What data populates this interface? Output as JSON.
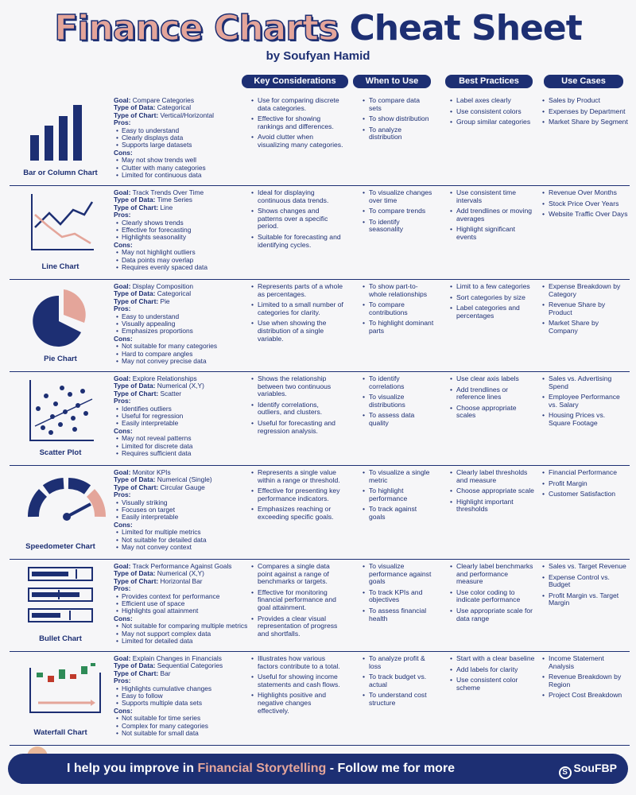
{
  "title": {
    "part1": "Finance Charts",
    "part2": "Cheat Sheet"
  },
  "byline": "by Soufyan Hamid",
  "columns": [
    "Key Considerations",
    "When to Use",
    "Best Practices",
    "Use Cases"
  ],
  "labels": {
    "goal": "Goal:",
    "type_of_data": "Type of Data:",
    "type_of_chart": "Type of Chart:",
    "pros": "Pros:",
    "cons": "Cons:"
  },
  "rows": [
    {
      "name": "Bar or Column Chart",
      "icon": "bar-chart-icon",
      "goal": "Compare Categories",
      "data_type": "Categorical",
      "chart_type": "Vertical/Horizontal",
      "pros": [
        "Easy to understand",
        "Clearly displays data",
        "Supports large datasets"
      ],
      "cons": [
        "May not show trends well",
        "Clutter with many categories",
        "Limited for continuous data"
      ],
      "key": [
        "Use for comparing discrete data categories.",
        "Effective for showing rankings and differences.",
        "Avoid clutter when visualizing many categories."
      ],
      "when": [
        "To compare data sets",
        "To show distribution",
        "To analyze distribution"
      ],
      "best": [
        "Label axes clearly",
        "Use consistent colors",
        "Group similar categories"
      ],
      "uses": [
        "Sales by Product",
        "Expenses by Department",
        "Market Share by Segment"
      ]
    },
    {
      "name": "Line Chart",
      "icon": "line-chart-icon",
      "goal": "Track Trends Over Time",
      "data_type": "Time Series",
      "chart_type": "Line",
      "pros": [
        "Clearly shows trends",
        "Effective for forecasting",
        "Highlights seasonality"
      ],
      "cons": [
        "May not highlight outliers",
        "Data points may overlap",
        "Requires evenly spaced data"
      ],
      "key": [
        "Ideal for displaying continuous data trends.",
        "Shows changes and patterns over a specific period.",
        "Suitable for forecasting and identifying cycles."
      ],
      "when": [
        "To visualize changes over time",
        "To compare trends",
        "To identify seasonality"
      ],
      "best": [
        "Use consistent time intervals",
        "Add trendlines or moving averages",
        "Highlight significant events"
      ],
      "uses": [
        "Revenue Over Months",
        "Stock Price Over Years",
        "Website Traffic Over Days"
      ]
    },
    {
      "name": "Pie Chart",
      "icon": "pie-chart-icon",
      "goal": "Display Composition",
      "data_type": "Categorical",
      "chart_type": "Pie",
      "pros": [
        "Easy to understand",
        "Visually appealing",
        "Emphasizes proportions"
      ],
      "cons": [
        "Not suitable for many categories",
        "Hard to compare angles",
        "May not convey precise data"
      ],
      "key": [
        "Represents parts of a whole as percentages.",
        "Limited to a small number of categories for clarity.",
        "Use when showing the distribution of a single variable."
      ],
      "when": [
        "To show part-to-whole relationships",
        "To compare contributions",
        "To highlight dominant parts"
      ],
      "best": [
        "Limit to a few categories",
        "Sort categories by size",
        "Label categories and percentages"
      ],
      "uses": [
        "Expense Breakdown by Category",
        "Revenue Share by Product",
        "Market Share by Company"
      ]
    },
    {
      "name": "Scatter Plot",
      "icon": "scatter-plot-icon",
      "goal": "Explore Relationships",
      "data_type": "Numerical (X,Y)",
      "chart_type": "Scatter",
      "pros": [
        "Identifies outliers",
        "Useful for regression",
        "Easily interpretable"
      ],
      "cons": [
        "May not reveal patterns",
        "Limited for discrete data",
        "Requires sufficient data"
      ],
      "key": [
        "Shows the relationship between two continuous variables.",
        "Identify correlations, outliers, and clusters.",
        "Useful for forecasting and regression analysis."
      ],
      "when": [
        "To identify correlations",
        "To visualize distributions",
        "To assess data quality"
      ],
      "best": [
        "Use clear axis labels",
        "Add trendlines or reference lines",
        "Choose appropriate scales"
      ],
      "uses": [
        "Sales vs. Advertising Spend",
        "Employee Performance vs. Salary",
        "Housing Prices vs. Square Footage"
      ]
    },
    {
      "name": "Speedometer Chart",
      "icon": "speedometer-icon",
      "goal": "Monitor KPIs",
      "data_type": "Numerical (Single)",
      "chart_type": "Circular Gauge",
      "pros": [
        "Visually striking",
        "Focuses on target",
        "Easily interpretable"
      ],
      "cons": [
        "Limited for multiple metrics",
        "Not suitable for detailed data",
        "May not convey context"
      ],
      "key": [
        "Represents a single value within a range or threshold.",
        "Effective for presenting key performance indicators.",
        "Emphasizes reaching or exceeding specific goals."
      ],
      "when": [
        "To visualize a single metric",
        "To highlight performance",
        "To track against goals"
      ],
      "best": [
        "Clearly label thresholds and measure",
        "Choose appropriate scale",
        "Highlight important thresholds"
      ],
      "uses": [
        "Financial Performance",
        "Profit Margin",
        "Customer Satisfaction"
      ]
    },
    {
      "name": "Bullet Chart",
      "icon": "bullet-chart-icon",
      "goal": "Track Performance Against Goals",
      "data_type": "Numerical (X,Y)",
      "chart_type": "Horizontal Bar",
      "pros": [
        "Provides context for performance",
        "Efficient use of space",
        "Highlights goal attainment"
      ],
      "cons": [
        "Not suitable for comparing multiple metrics",
        "May not support complex data",
        "Limited for detailed data"
      ],
      "key": [
        "Compares a single data point against a range of benchmarks or targets.",
        "Effective for monitoring financial performance and goal attainment.",
        "Provides a clear visual representation of progress and shortfalls."
      ],
      "when": [
        "To visualize performance against goals",
        "To track KPIs and objectives",
        "To assess financial health"
      ],
      "best": [
        "Clearly label benchmarks and performance measure",
        "Use color coding to indicate performance",
        "Use appropriate scale for data range"
      ],
      "uses": [
        "Sales vs. Target Revenue",
        "Expense Control vs. Budget",
        "Profit Margin vs. Target Margin"
      ]
    },
    {
      "name": "Waterfall Chart",
      "icon": "waterfall-chart-icon",
      "goal": "Explain Changes in Financials",
      "data_type": "Sequential Categories",
      "chart_type": "Bar",
      "pros": [
        "Highlights cumulative changes",
        "Easy to follow",
        "Supports multiple data sets"
      ],
      "cons": [
        "Not suitable for time series",
        "Complex for many categories",
        "Not suitable for small data"
      ],
      "key": [
        "Illustrates how various factors contribute to a total.",
        "Useful for showing income statements and cash flows.",
        "Highlights positive and negative changes effectively."
      ],
      "when": [
        "To analyze profit & loss",
        "To track budget vs. actual",
        "To understand cost structure"
      ],
      "best": [
        "Start with a clear baseline",
        "Add labels for clarity",
        "Use consistent color scheme"
      ],
      "uses": [
        "Income Statement Analysis",
        "Revenue Breakdown by Region",
        "Project Cost Breakdown"
      ]
    }
  ],
  "footer": {
    "pre": "I help you improve in ",
    "highlight": "Financial Storytelling",
    "post": " - Follow me for more"
  },
  "logo": {
    "mark": "S",
    "text": "SouFBP"
  },
  "colors": {
    "navy": "#1d2f73",
    "salmon": "#e4a59a",
    "background": "#f6f6f8"
  }
}
